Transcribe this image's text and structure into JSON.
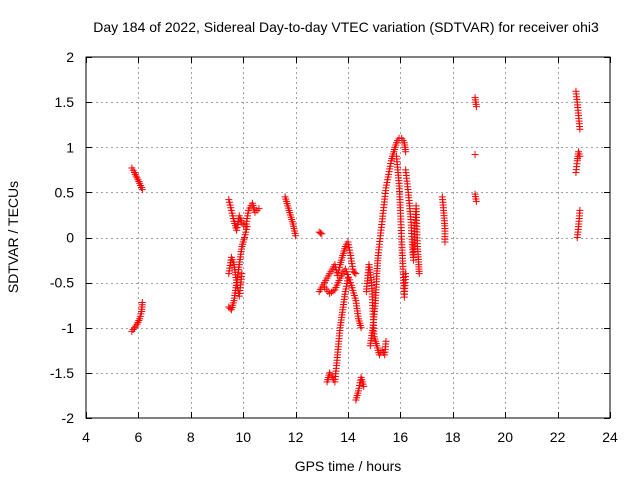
{
  "chart_data": {
    "type": "scatter",
    "title": "Day 184 of 2022, Sidereal Day-to-day VTEC variation (SDTVAR) for receiver ohi3",
    "xlabel": "GPS time / hours",
    "ylabel": "SDTVAR / TECUs",
    "xlim": [
      4,
      24
    ],
    "ylim": [
      -2,
      2
    ],
    "x_ticks": [
      4,
      6,
      8,
      10,
      12,
      14,
      16,
      18,
      20,
      22,
      24
    ],
    "y_ticks": [
      -2,
      -1.5,
      -1,
      -0.5,
      0,
      0.5,
      1,
      1.5,
      2
    ],
    "grid": true,
    "marker": "+",
    "color": "#ff0000",
    "series": [
      {
        "name": "SDTVAR",
        "tracks": [
          [
            [
              5.75,
              0.77
            ],
            [
              5.85,
              0.72
            ],
            [
              5.95,
              0.66
            ],
            [
              6.05,
              0.6
            ],
            [
              6.15,
              0.53
            ]
          ],
          [
            [
              5.75,
              -1.04
            ],
            [
              5.85,
              -1.0
            ],
            [
              5.95,
              -0.96
            ],
            [
              6.05,
              -0.9
            ],
            [
              6.12,
              -0.82
            ],
            [
              6.15,
              -0.72
            ]
          ],
          [
            [
              9.45,
              0.42
            ],
            [
              9.55,
              0.3
            ],
            [
              9.65,
              0.18
            ],
            [
              9.75,
              0.08
            ],
            [
              9.85,
              0.24
            ],
            [
              9.95,
              0.16
            ],
            [
              10.1,
              0.12
            ],
            [
              10.2,
              0.3
            ],
            [
              10.35,
              0.38
            ],
            [
              10.45,
              0.28
            ],
            [
              10.6,
              0.32
            ]
          ],
          [
            [
              9.45,
              -0.77
            ],
            [
              9.55,
              -0.8
            ],
            [
              9.65,
              -0.7
            ],
            [
              9.75,
              -0.5
            ],
            [
              9.85,
              -0.3
            ],
            [
              9.95,
              -0.1
            ],
            [
              10.05,
              0.0
            ],
            [
              10.15,
              0.12
            ]
          ],
          [
            [
              9.45,
              -0.4
            ],
            [
              9.55,
              -0.22
            ],
            [
              9.65,
              -0.3
            ],
            [
              9.75,
              -0.5
            ],
            [
              9.85,
              -0.65
            ],
            [
              9.95,
              -0.4
            ]
          ],
          [
            [
              11.6,
              0.45
            ],
            [
              11.7,
              0.35
            ],
            [
              11.8,
              0.25
            ],
            [
              11.9,
              0.15
            ],
            [
              12.0,
              0.02
            ]
          ],
          [
            [
              12.9,
              0.06
            ],
            [
              13.0,
              0.04
            ]
          ],
          [
            [
              12.9,
              -0.6
            ],
            [
              13.0,
              -0.55
            ],
            [
              13.1,
              -0.5
            ],
            [
              13.2,
              -0.45
            ],
            [
              13.3,
              -0.4
            ],
            [
              13.4,
              -0.35
            ],
            [
              13.5,
              -0.3
            ],
            [
              13.6,
              -0.42
            ],
            [
              13.7,
              -0.3
            ],
            [
              13.8,
              -0.2
            ],
            [
              13.9,
              -0.1
            ],
            [
              14.0,
              -0.05
            ],
            [
              14.1,
              -0.2
            ],
            [
              14.2,
              -0.38
            ],
            [
              14.3,
              -0.4
            ]
          ],
          [
            [
              13.2,
              -1.6
            ],
            [
              13.3,
              -1.5
            ],
            [
              13.4,
              -1.55
            ],
            [
              13.5,
              -1.6
            ],
            [
              13.6,
              -1.3
            ],
            [
              13.7,
              -1.0
            ],
            [
              13.8,
              -0.8
            ],
            [
              13.9,
              -0.6
            ],
            [
              14.0,
              -0.45
            ]
          ],
          [
            [
              13.1,
              -0.55
            ],
            [
              13.3,
              -0.62
            ],
            [
              13.5,
              -0.58
            ],
            [
              13.7,
              -0.45
            ],
            [
              13.9,
              -0.35
            ],
            [
              14.1,
              -0.5
            ],
            [
              14.3,
              -0.7
            ],
            [
              14.4,
              -0.9
            ],
            [
              14.5,
              -1.0
            ]
          ],
          [
            [
              14.3,
              -1.8
            ],
            [
              14.4,
              -1.7
            ],
            [
              14.5,
              -1.55
            ],
            [
              14.6,
              -1.65
            ]
          ],
          [
            [
              14.7,
              -0.6
            ],
            [
              14.8,
              -0.3
            ],
            [
              14.9,
              -0.5
            ],
            [
              15.0,
              -1.1
            ],
            [
              15.1,
              -1.2
            ],
            [
              15.2,
              -1.3
            ],
            [
              15.3,
              -1.25
            ],
            [
              15.4,
              -1.3
            ],
            [
              15.45,
              -1.15
            ]
          ],
          [
            [
              14.85,
              -1.2
            ],
            [
              14.95,
              -1.0
            ],
            [
              15.05,
              -0.7
            ],
            [
              15.1,
              -0.4
            ],
            [
              15.15,
              -0.2
            ],
            [
              15.25,
              0.05
            ],
            [
              15.35,
              0.3
            ],
            [
              15.45,
              0.55
            ],
            [
              15.55,
              0.7
            ],
            [
              15.65,
              0.85
            ],
            [
              15.75,
              0.95
            ],
            [
              15.85,
              1.05
            ],
            [
              15.95,
              1.1
            ],
            [
              16.05,
              1.1
            ],
            [
              16.15,
              1.05
            ],
            [
              16.2,
              0.95
            ]
          ],
          [
            [
              15.85,
              0.9
            ],
            [
              15.95,
              0.6
            ],
            [
              16.0,
              0.3
            ],
            [
              16.05,
              -0.05
            ],
            [
              16.1,
              -0.35
            ],
            [
              16.15,
              -0.66
            ],
            [
              16.2,
              -0.4
            ]
          ],
          [
            [
              16.2,
              0.75
            ],
            [
              16.3,
              0.5
            ],
            [
              16.4,
              0.2
            ],
            [
              16.45,
              -0.05
            ],
            [
              16.5,
              -0.25
            ],
            [
              16.55,
              0.1
            ],
            [
              16.6,
              0.35
            ],
            [
              16.65,
              -0.1
            ],
            [
              16.7,
              -0.3
            ],
            [
              16.72,
              -0.4
            ]
          ],
          [
            [
              17.6,
              0.45
            ],
            [
              17.65,
              0.3
            ],
            [
              17.7,
              0.1
            ],
            [
              17.7,
              -0.05
            ]
          ],
          [
            [
              18.85,
              1.55
            ],
            [
              18.9,
              1.45
            ]
          ],
          [
            [
              18.85,
              0.92
            ]
          ],
          [
            [
              18.85,
              0.48
            ],
            [
              18.9,
              0.4
            ]
          ],
          [
            [
              22.7,
              1.62
            ],
            [
              22.75,
              1.5
            ],
            [
              22.8,
              1.35
            ],
            [
              22.85,
              1.2
            ]
          ],
          [
            [
              22.7,
              0.72
            ],
            [
              22.75,
              0.85
            ],
            [
              22.8,
              0.95
            ],
            [
              22.85,
              0.9
            ]
          ],
          [
            [
              22.75,
              0.0
            ],
            [
              22.8,
              0.12
            ],
            [
              22.85,
              0.3
            ]
          ]
        ]
      }
    ]
  }
}
